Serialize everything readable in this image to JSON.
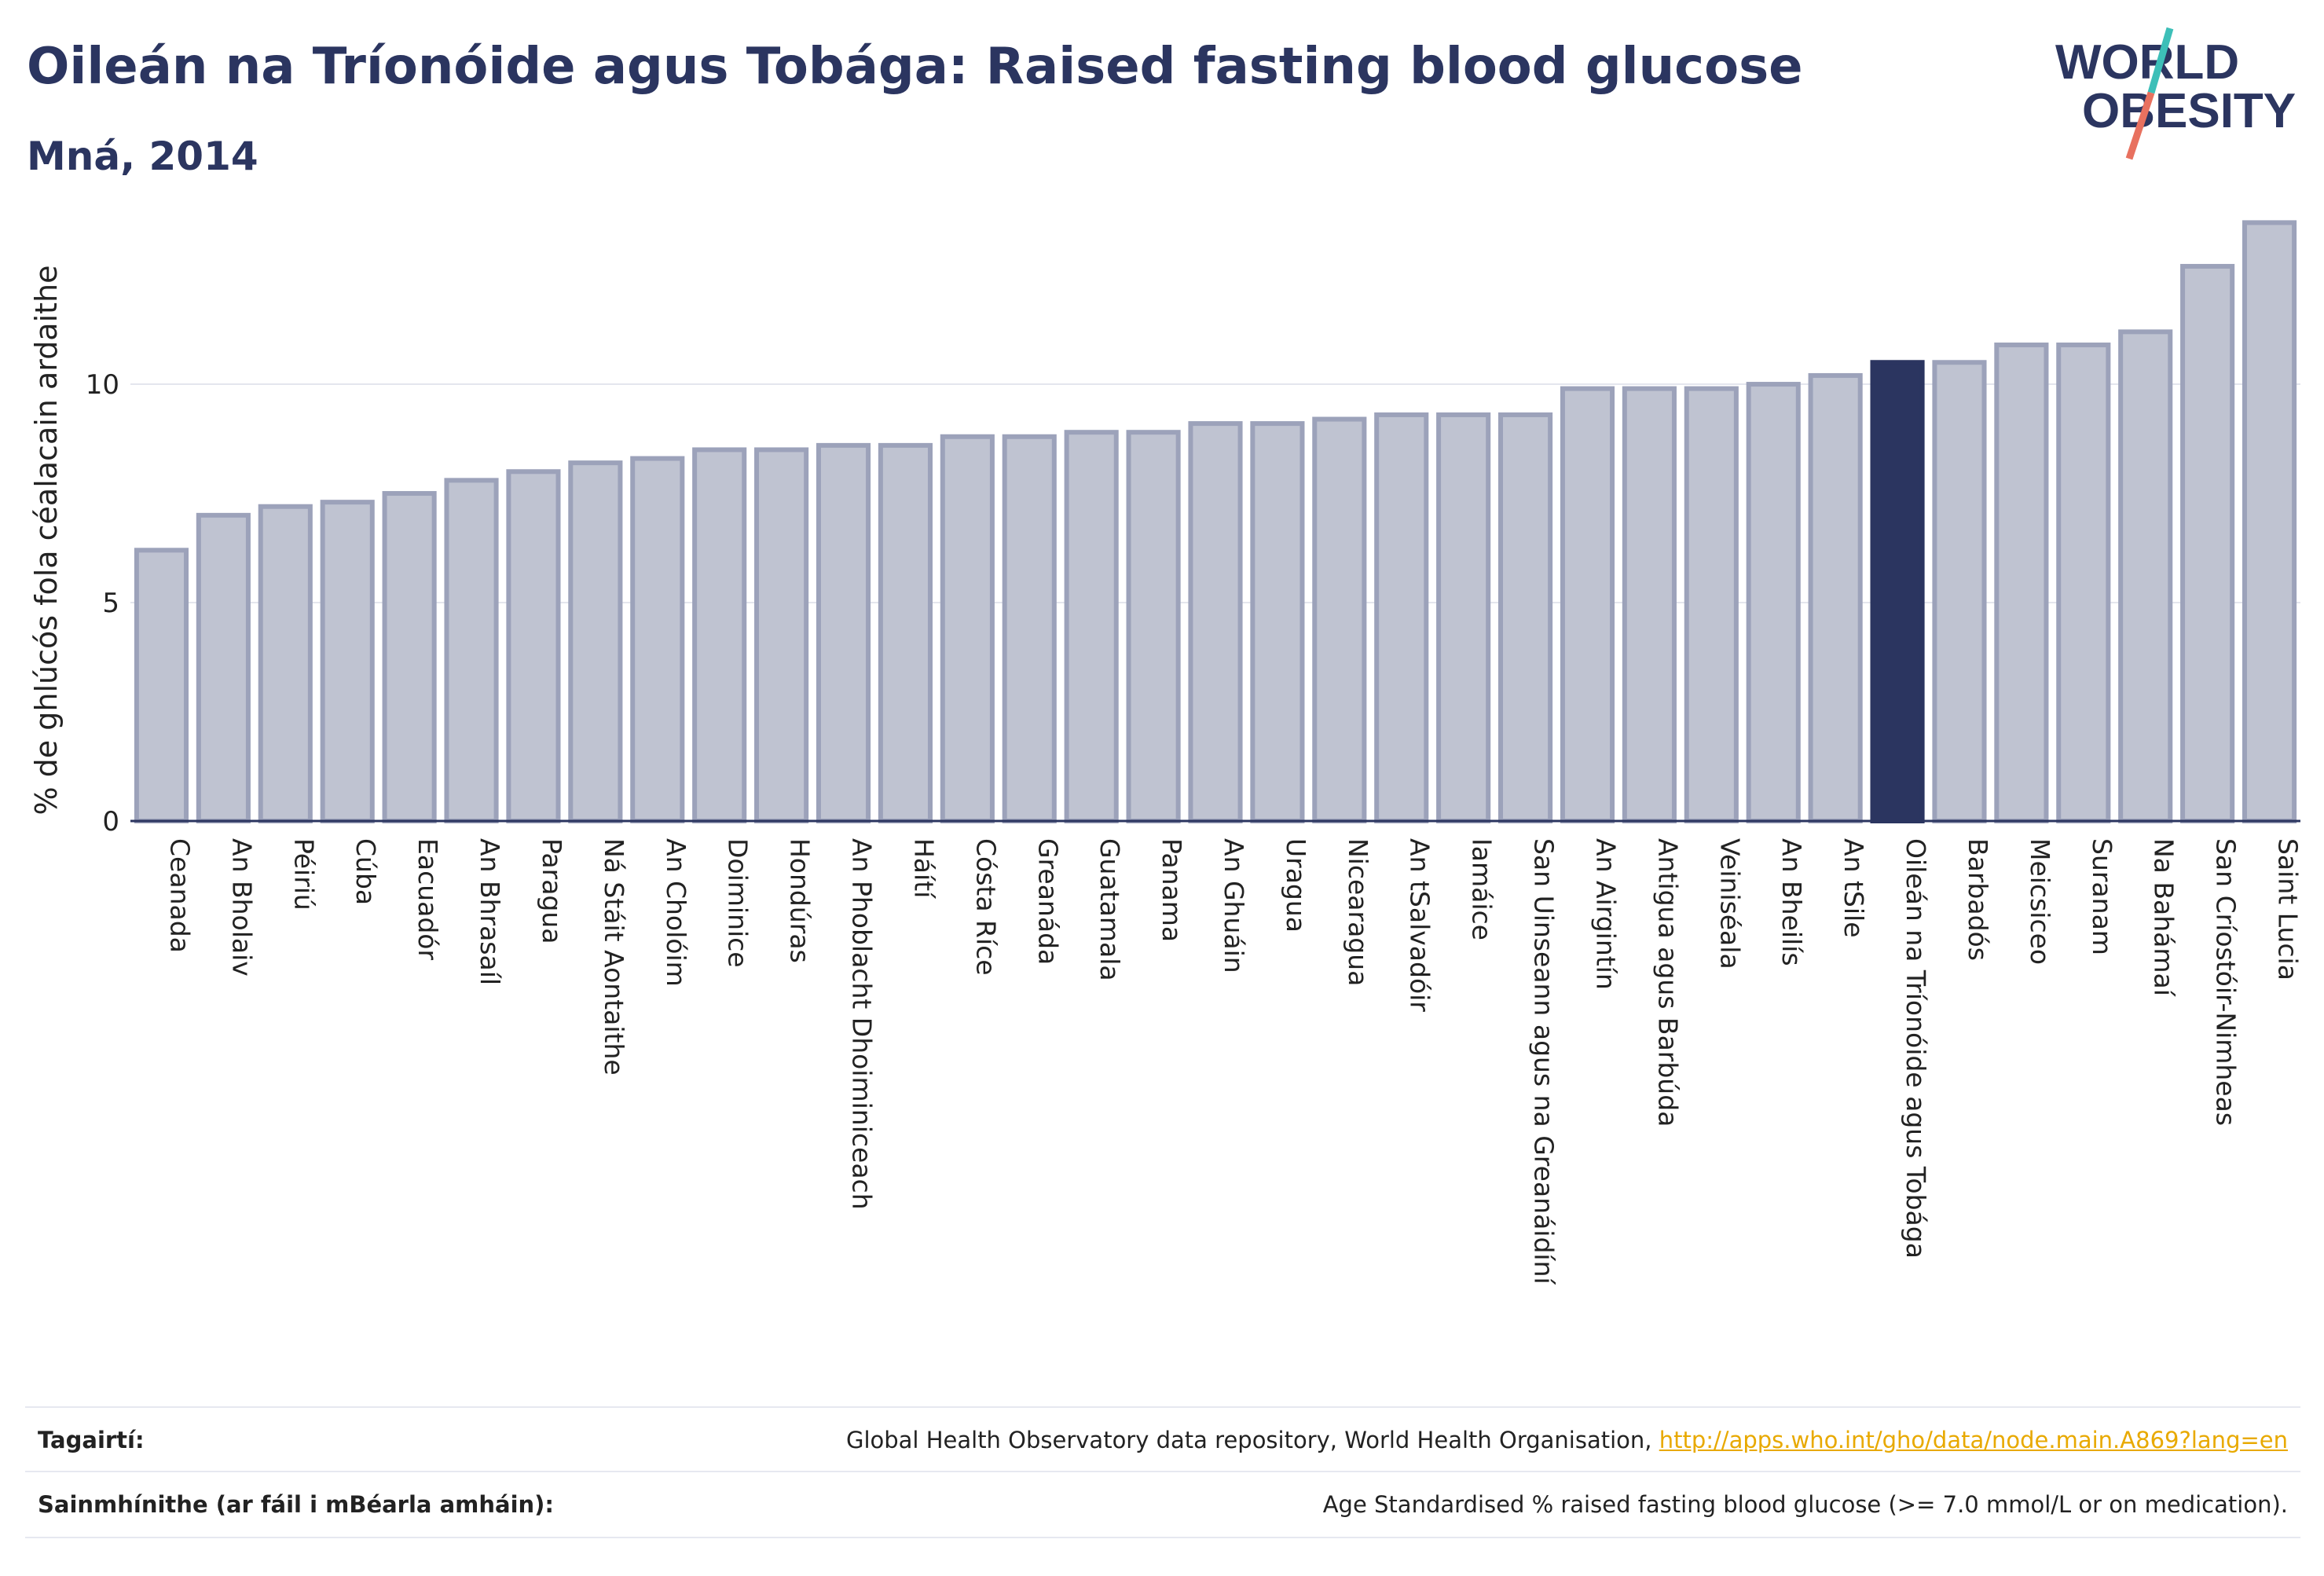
{
  "header": {
    "title": "Oileán na Tríonóide agus Tobága: Raised fasting blood glucose",
    "subtitle": "Mná, 2014",
    "logo_line1": "WORLD",
    "logo_line2": "OBESITY"
  },
  "colors": {
    "bar_fill": "#bfc3d1",
    "bar_stroke": "#9ca2ba",
    "highlight_fill": "#2b3560",
    "title": "#2b3560",
    "logo_teal": "#3dbfb8",
    "logo_coral": "#e8715f",
    "link": "#e8a900"
  },
  "chart_data": {
    "type": "bar",
    "ylabel": "% de ghlúcós fola céalacain ardaithe",
    "ylim": [
      0,
      14.3
    ],
    "yticks": [
      0,
      5,
      10
    ],
    "grid": true,
    "highlight": "Oileán na Tríonóide agus Tobága",
    "categories": [
      "Ceanada",
      "An Bholaiv",
      "Péiriú",
      "Cúba",
      "Eacuadór",
      "An Bhrasaíl",
      "Paragua",
      "Ná Stáit Aontaithe",
      "An Cholóim",
      "Doiminice",
      "Hondúras",
      "An Phoblacht Dhoiminiceach",
      "Háítí",
      "Cósta Ríce",
      "Greanáda",
      "Guatamala",
      "Panama",
      "An Ghuáin",
      "Uragua",
      "Nicearagua",
      "An tSalvadóir",
      "Iamáice",
      "San Uinseann agus na Greanáidíní",
      "An Airgintín",
      "Antigua agus Barbúda",
      "Veiniséala",
      "An Bheilís",
      "An tSile",
      "Oileán na Tríonóide agus Tobága",
      "Barbadós",
      "Meicsiceo",
      "Suranam",
      "Na Bahámaí",
      "San Críostóir-Nimheas",
      "Saint Lucia"
    ],
    "values": [
      6.2,
      7.0,
      7.2,
      7.3,
      7.5,
      7.8,
      8.0,
      8.2,
      8.3,
      8.5,
      8.5,
      8.6,
      8.6,
      8.8,
      8.8,
      8.9,
      8.9,
      9.1,
      9.1,
      9.2,
      9.3,
      9.3,
      9.3,
      9.9,
      9.9,
      9.9,
      10.0,
      10.2,
      10.5,
      10.5,
      10.9,
      10.9,
      11.2,
      12.7,
      13.7
    ]
  },
  "footer": {
    "references_label": "Tagairtí:",
    "references_text": "Global Health Observatory data repository, World Health Organisation,",
    "references_link": "http://apps.who.int/gho/data/node.main.A869?lang=en",
    "definitions_label": "Sainmhínithe (ar fáil i mBéarla amháin):",
    "definitions_text": "Age Standardised % raised fasting blood glucose (>= 7.0 mmol/L or on medication)."
  }
}
